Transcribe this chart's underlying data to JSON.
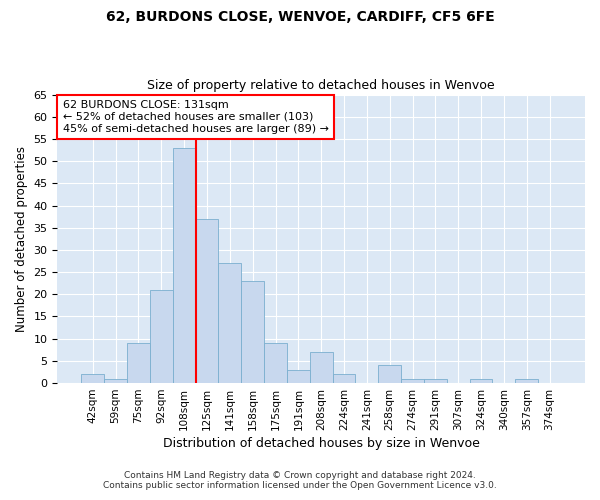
{
  "title1": "62, BURDONS CLOSE, WENVOE, CARDIFF, CF5 6FE",
  "title2": "Size of property relative to detached houses in Wenvoe",
  "xlabel": "Distribution of detached houses by size in Wenvoe",
  "ylabel": "Number of detached properties",
  "categories": [
    "42sqm",
    "59sqm",
    "75sqm",
    "92sqm",
    "108sqm",
    "125sqm",
    "141sqm",
    "158sqm",
    "175sqm",
    "191sqm",
    "208sqm",
    "224sqm",
    "241sqm",
    "258sqm",
    "274sqm",
    "291sqm",
    "307sqm",
    "324sqm",
    "340sqm",
    "357sqm",
    "374sqm"
  ],
  "values": [
    2,
    1,
    9,
    21,
    53,
    37,
    27,
    23,
    9,
    3,
    7,
    2,
    0,
    4,
    1,
    1,
    0,
    1,
    0,
    1,
    0
  ],
  "bar_color": "#c8d8ee",
  "bar_edge_color": "#7aafcf",
  "highlight_line_index": 5,
  "annotation_text": "62 BURDONS CLOSE: 131sqm\n← 52% of detached houses are smaller (103)\n45% of semi-detached houses are larger (89) →",
  "annotation_box_color": "white",
  "annotation_box_edge": "red",
  "ylim": [
    0,
    65
  ],
  "yticks": [
    0,
    5,
    10,
    15,
    20,
    25,
    30,
    35,
    40,
    45,
    50,
    55,
    60,
    65
  ],
  "footer1": "Contains HM Land Registry data © Crown copyright and database right 2024.",
  "footer2": "Contains public sector information licensed under the Open Government Licence v3.0.",
  "plot_background": "#dce8f5"
}
